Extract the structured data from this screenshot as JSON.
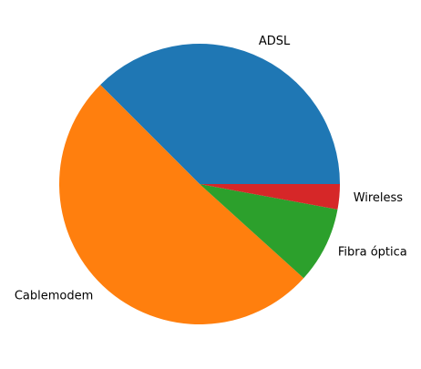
{
  "chart_data": {
    "type": "pie",
    "title": "",
    "start_angle_deg": 0,
    "direction": "counterclockwise",
    "legend": "none",
    "slices": [
      {
        "label": "ADSL",
        "value": 37.5,
        "color": "#1f77b4"
      },
      {
        "label": "Cablemodem",
        "value": 50.8,
        "color": "#ff7f0e"
      },
      {
        "label": "Fibra óptica",
        "value": 8.8,
        "color": "#2ca02c"
      },
      {
        "label": "Wireless",
        "value": 2.9,
        "color": "#d62728"
      }
    ]
  }
}
